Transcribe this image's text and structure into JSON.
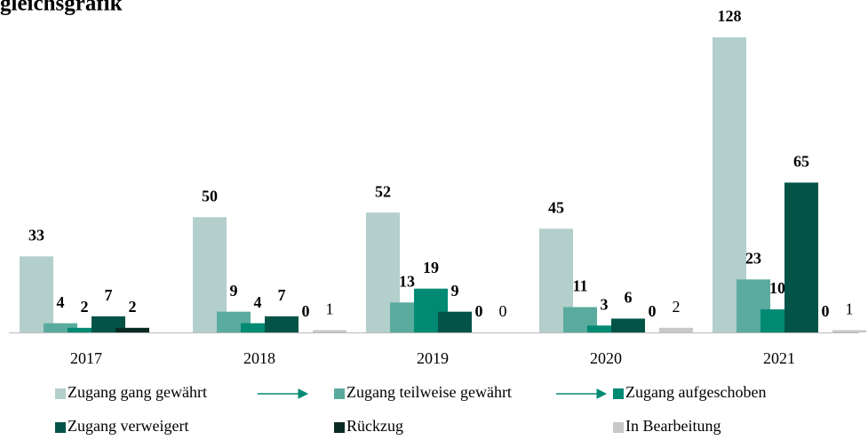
{
  "chart_data": {
    "type": "bar",
    "title": "gleichsgrafik",
    "categories": [
      "2017",
      "2018",
      "2019",
      "2020",
      "2021"
    ],
    "series": [
      {
        "name": "Zugang gang gewährt",
        "color": "#b3cfcc",
        "values": [
          33,
          50,
          52,
          45,
          128
        ]
      },
      {
        "name": "Zugang teilweise gewährt",
        "color": "#5aab9e",
        "values": [
          4,
          9,
          13,
          11,
          23
        ]
      },
      {
        "name": "Zugang aufgeschoben",
        "color": "#008a74",
        "values": [
          2,
          4,
          19,
          3,
          10
        ]
      },
      {
        "name": "Zugang verweigert",
        "color": "#035447",
        "values": [
          7,
          7,
          9,
          6,
          65
        ]
      },
      {
        "name": "Rückzug",
        "color": "#0a2a24",
        "values": [
          2,
          0,
          0,
          0,
          0
        ]
      },
      {
        "name": "In Bearbeitung",
        "color": "#c8c8c8",
        "values": [
          null,
          1,
          0,
          2,
          1
        ]
      }
    ]
  }
}
